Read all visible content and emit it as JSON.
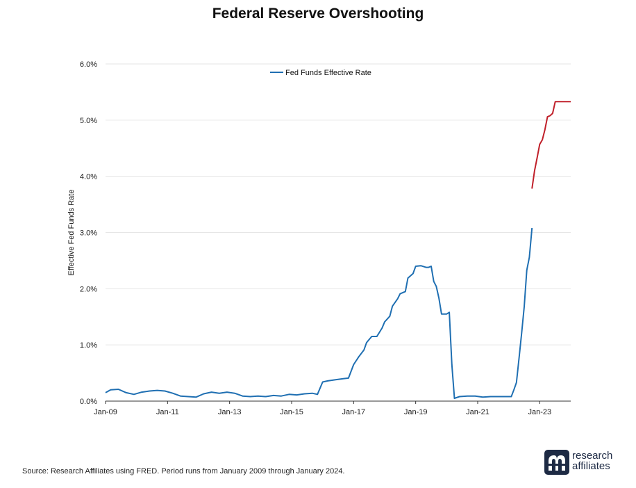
{
  "title": "Federal Reserve Overshooting",
  "source": "Source: Research Affiliates using FRED. Period runs from January 2009 through January 2024.",
  "logo": {
    "line1": "research",
    "line2": "affiliates",
    "mark_icon": "research-affiliates-logo-icon"
  },
  "colors": {
    "series": "#1f6fb2",
    "highlight": "#c0202a",
    "grid": "#e6e6e6",
    "axis": "#333333",
    "logo": "#1d2a44"
  },
  "chart_data": {
    "type": "line",
    "title": "Federal Reserve Overshooting",
    "xlabel": "",
    "ylabel": "Effective Fed Funds Rate",
    "ylim": [
      0,
      6
    ],
    "yticks": [
      "0.0%",
      "1.0%",
      "2.0%",
      "3.0%",
      "4.0%",
      "5.0%",
      "6.0%"
    ],
    "xticks": [
      "Jan-09",
      "Jan-11",
      "Jan-13",
      "Jan-15",
      "Jan-17",
      "Jan-19",
      "Jan-21",
      "Jan-23"
    ],
    "grid": "horizontal",
    "legend": {
      "position": "top-center",
      "entries": [
        "Fed Funds Effective Rate"
      ]
    },
    "series": [
      {
        "name": "Fed Funds Effective Rate",
        "x": [
          "2009-01",
          "2009-03",
          "2009-06",
          "2009-09",
          "2009-12",
          "2010-03",
          "2010-06",
          "2010-09",
          "2010-12",
          "2011-03",
          "2011-06",
          "2011-09",
          "2011-12",
          "2012-03",
          "2012-06",
          "2012-09",
          "2012-12",
          "2013-03",
          "2013-06",
          "2013-09",
          "2013-12",
          "2014-03",
          "2014-06",
          "2014-09",
          "2014-12",
          "2015-03",
          "2015-06",
          "2015-09",
          "2015-11",
          "2016-01",
          "2016-03",
          "2016-06",
          "2016-09",
          "2016-11",
          "2017-01",
          "2017-03",
          "2017-05",
          "2017-06",
          "2017-08",
          "2017-10",
          "2017-12",
          "2018-01",
          "2018-03",
          "2018-04",
          "2018-06",
          "2018-07",
          "2018-09",
          "2018-10",
          "2018-12",
          "2019-01",
          "2019-03",
          "2019-05",
          "2019-06",
          "2019-07",
          "2019-08",
          "2019-09",
          "2019-10",
          "2019-11",
          "2020-01",
          "2020-02",
          "2020-03",
          "2020-04",
          "2020-06",
          "2020-09",
          "2020-12",
          "2021-03",
          "2021-06",
          "2021-09",
          "2021-12",
          "2022-02",
          "2022-03",
          "2022-04",
          "2022-05",
          "2022-06",
          "2022-07",
          "2022-08",
          "2022-09",
          "2022-10"
        ],
        "values": [
          0.15,
          0.2,
          0.21,
          0.15,
          0.12,
          0.16,
          0.18,
          0.19,
          0.18,
          0.14,
          0.09,
          0.08,
          0.07,
          0.13,
          0.16,
          0.14,
          0.16,
          0.14,
          0.09,
          0.08,
          0.09,
          0.08,
          0.1,
          0.09,
          0.12,
          0.11,
          0.13,
          0.14,
          0.12,
          0.34,
          0.36,
          0.38,
          0.4,
          0.41,
          0.65,
          0.79,
          0.91,
          1.04,
          1.15,
          1.15,
          1.3,
          1.41,
          1.51,
          1.69,
          1.82,
          1.91,
          1.95,
          2.19,
          2.27,
          2.4,
          2.41,
          2.38,
          2.38,
          2.4,
          2.13,
          2.04,
          1.83,
          1.55,
          1.55,
          1.58,
          0.65,
          0.05,
          0.08,
          0.09,
          0.09,
          0.07,
          0.08,
          0.08,
          0.08,
          0.08,
          0.2,
          0.33,
          0.77,
          1.21,
          1.68,
          2.33,
          2.56,
          3.08
        ]
      },
      {
        "name": "",
        "x": [
          "2022-10",
          "2022-11",
          "2022-12",
          "2023-01",
          "2023-02",
          "2023-03",
          "2023-04",
          "2023-05",
          "2023-06",
          "2023-07",
          "2023-08",
          "2023-09",
          "2023-10",
          "2023-11",
          "2023-12",
          "2024-01"
        ],
        "values": [
          3.78,
          4.1,
          4.33,
          4.57,
          4.65,
          4.83,
          5.06,
          5.08,
          5.12,
          5.33,
          5.33,
          5.33,
          5.33,
          5.33,
          5.33,
          5.33
        ]
      }
    ]
  }
}
